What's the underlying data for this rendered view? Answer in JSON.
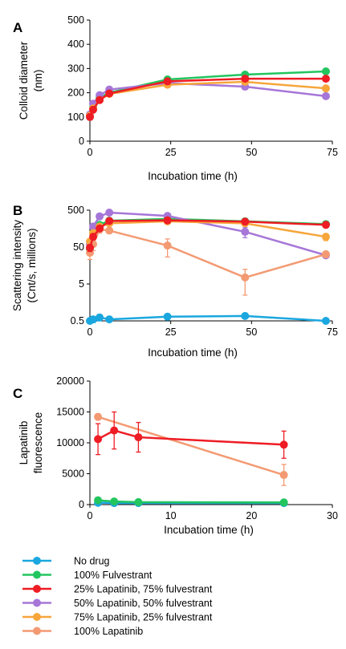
{
  "colors": {
    "no_drug": "#1aa7df",
    "fulv100": "#22c55e",
    "lap25": "#ee1c24",
    "lap50": "#a676d8",
    "lap75": "#f7a63c",
    "lap100": "#f39a73",
    "axis": "#000000"
  },
  "legend": [
    {
      "key": "no_drug",
      "label": "No drug"
    },
    {
      "key": "fulv100",
      "label": "100% Fulvestrant"
    },
    {
      "key": "lap25",
      "label": "25% Lapatinib, 75% fulvestrant"
    },
    {
      "key": "lap50",
      "label": "50% Lapatinib, 50% fulvestrant"
    },
    {
      "key": "lap75",
      "label": "75% Lapatinib, 25% fulvestrant"
    },
    {
      "key": "lap100",
      "label": "100% Lapatinib"
    }
  ],
  "chart_data": [
    {
      "panel": "A",
      "type": "line",
      "xlabel": "Incubation time (h)",
      "ylabel": [
        "Colloid diameter",
        "(nm)"
      ],
      "xlim": [
        0,
        75
      ],
      "ylim": [
        0,
        500
      ],
      "xticks": [
        0,
        25,
        50,
        75
      ],
      "yticks": [
        0,
        100,
        200,
        300,
        400,
        500
      ],
      "series": [
        {
          "key": "fulv100",
          "x": [
            0,
            1,
            3,
            6,
            24,
            48,
            73
          ],
          "y": [
            100,
            140,
            180,
            200,
            255,
            275,
            288
          ]
        },
        {
          "key": "lap50",
          "x": [
            0,
            1,
            3,
            6,
            24,
            48,
            73
          ],
          "y": [
            110,
            155,
            190,
            213,
            240,
            225,
            186
          ]
        },
        {
          "key": "lap75",
          "x": [
            0,
            1,
            3,
            6,
            24,
            48,
            73
          ],
          "y": [
            105,
            135,
            170,
            195,
            233,
            245,
            218
          ]
        },
        {
          "key": "lap25",
          "x": [
            0,
            1,
            3,
            6,
            24,
            48,
            73
          ],
          "y": [
            100,
            130,
            170,
            197,
            247,
            258,
            258
          ]
        }
      ]
    },
    {
      "panel": "B",
      "type": "line",
      "xlabel": "Incubation time (h)",
      "ylabel": [
        "Scattering intensity",
        "(Cnt/s, millions)"
      ],
      "yscale": "log",
      "xlim": [
        0,
        75
      ],
      "ylim": [
        0.5,
        500
      ],
      "xticks": [
        0,
        25,
        50,
        75
      ],
      "yticks": [
        0.5,
        5,
        50,
        500
      ],
      "series": [
        {
          "key": "no_drug",
          "x": [
            0,
            1,
            3,
            6,
            24,
            48,
            73
          ],
          "y": [
            0.5,
            0.55,
            0.62,
            0.55,
            0.65,
            0.68,
            0.5
          ],
          "err": [
            0.05,
            0.1,
            0.12,
            0.08,
            0.12,
            0.1,
            0.05
          ]
        },
        {
          "key": "fulv100",
          "x": [
            0,
            1,
            3,
            6,
            24,
            48,
            73
          ],
          "y": [
            45,
            120,
            200,
            260,
            290,
            250,
            210
          ],
          "err": [
            10,
            20,
            20,
            20,
            20,
            20,
            20
          ]
        },
        {
          "key": "lap50",
          "x": [
            0,
            1,
            3,
            6,
            24,
            48,
            73
          ],
          "y": [
            60,
            180,
            340,
            430,
            350,
            130,
            30
          ],
          "err": [
            10,
            25,
            30,
            30,
            30,
            40,
            5
          ]
        },
        {
          "key": "lap75",
          "x": [
            0,
            1,
            3,
            6,
            24,
            48,
            73
          ],
          "y": [
            70,
            120,
            180,
            220,
            250,
            220,
            95
          ],
          "err": [
            15,
            20,
            20,
            20,
            20,
            20,
            20
          ]
        },
        {
          "key": "lap100",
          "x": [
            0,
            1,
            3,
            6,
            24,
            48,
            73
          ],
          "y": [
            35,
            60,
            150,
            140,
            55,
            7.5,
            32
          ],
          "err": [
            12,
            20,
            30,
            20,
            28,
            5,
            6
          ]
        },
        {
          "key": "lap25",
          "x": [
            0,
            1,
            3,
            6,
            24,
            48,
            73
          ],
          "y": [
            48,
            95,
            160,
            255,
            265,
            245,
            200
          ],
          "err": [
            10,
            15,
            20,
            20,
            20,
            20,
            20
          ]
        }
      ]
    },
    {
      "panel": "C",
      "type": "line",
      "xlabel": "Incubation time (h)",
      "ylabel": [
        "Lapatinib",
        "fluorescence"
      ],
      "xlim": [
        0,
        30
      ],
      "ylim": [
        0,
        20000
      ],
      "xticks": [
        0,
        10,
        20,
        30
      ],
      "yticks": [
        0,
        5000,
        10000,
        15000,
        20000
      ],
      "series": [
        {
          "key": "no_drug",
          "x": [
            1,
            3,
            6,
            24
          ],
          "y": [
            300,
            250,
            250,
            250
          ],
          "err": [
            100,
            100,
            100,
            100
          ]
        },
        {
          "key": "fulv100",
          "x": [
            1,
            3,
            6,
            24
          ],
          "y": [
            700,
            500,
            400,
            350
          ],
          "err": [
            300,
            200,
            150,
            100
          ]
        },
        {
          "key": "lap100",
          "x": [
            1,
            24
          ],
          "y": [
            14200,
            4800
          ],
          "err": [
            500,
            1700
          ]
        },
        {
          "key": "lap25",
          "x": [
            1,
            3,
            6,
            24
          ],
          "y": [
            10600,
            12000,
            10900,
            9700
          ],
          "err": [
            2500,
            3000,
            2400,
            2200
          ]
        }
      ]
    }
  ]
}
